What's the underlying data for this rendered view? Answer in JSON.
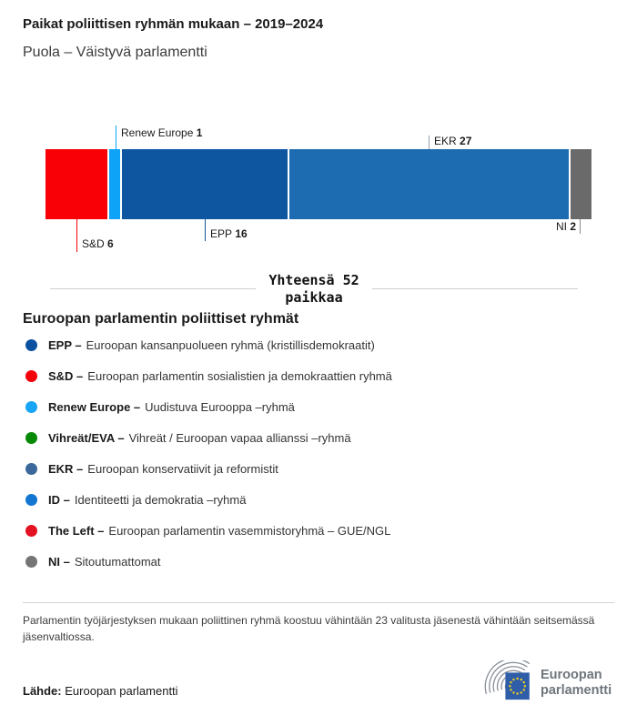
{
  "header": {
    "title": "Paikat poliittisen ryhmän mukaan – 2019–2024",
    "subtitle": "Puola – Väistyvä parlamentti"
  },
  "chart_data": {
    "type": "bar",
    "orientation": "horizontal-stacked",
    "title": "Paikat poliittisen ryhmän mukaan – 2019–2024",
    "subtitle": "Puola – Väistyvä parlamentti",
    "total_seats": 52,
    "total_caption": "Yhteensä 52 paikkaa",
    "segments": [
      {
        "group": "S&D",
        "seats": 6,
        "color": "#f90006",
        "callout": "below"
      },
      {
        "group": "Renew Europe",
        "seats": 1,
        "color": "#0fa3f7",
        "callout": "above"
      },
      {
        "group": "EPP",
        "seats": 16,
        "color": "#0e56a0",
        "callout": "below"
      },
      {
        "group": "EKR",
        "seats": 27,
        "color": "#1d6bb0",
        "callout": "above"
      },
      {
        "group": "NI",
        "seats": 2,
        "color": "#6a6a6a",
        "callout": "below"
      }
    ]
  },
  "total": {
    "text": "Yhteensä 52\npaikkaa"
  },
  "legend": {
    "heading": "Euroopan parlamentin poliittiset ryhmät",
    "items": [
      {
        "label": "EPP –",
        "description": "Euroopan kansanpuolueen ryhmä (kristillisdemokraatit)",
        "color": "#0b51a1"
      },
      {
        "label": "S&D –",
        "description": "Euroopan parlamentin sosialistien ja demokraattien ryhmä",
        "color": "#f40009"
      },
      {
        "label": "Renew Europe –",
        "description": "Uudistuva Eurooppa –ryhmä",
        "color": "#18a5f5"
      },
      {
        "label": "Vihreät/EVA –",
        "description": "Vihreät / Euroopan vapaa allianssi –ryhmä",
        "color": "#068a06"
      },
      {
        "label": "EKR –",
        "description": "Euroopan konservatiivit ja reformistit",
        "color": "#3a689b"
      },
      {
        "label": "ID –",
        "description": "Identiteetti ja demokratia –ryhmä",
        "color": "#1376d0"
      },
      {
        "label": "The Left –",
        "description": "Euroopan parlamentin vasemmistoryhmä – GUE/NGL",
        "color": "#e31122"
      },
      {
        "label": "NI –",
        "description": "Sitoutumattomat",
        "color": "#757575"
      }
    ]
  },
  "footnote": "Parlamentin työjärjestyksen mukaan poliittinen ryhmä koostuu vähintään 23 valitusta jäsenestä vähintään seitsemässä jäsenvaltiossa.",
  "source": {
    "label": "Lähde:",
    "value": "Euroopan parlamentti"
  },
  "logo": {
    "line1": "Euroopan",
    "line2": "parlamentti"
  }
}
